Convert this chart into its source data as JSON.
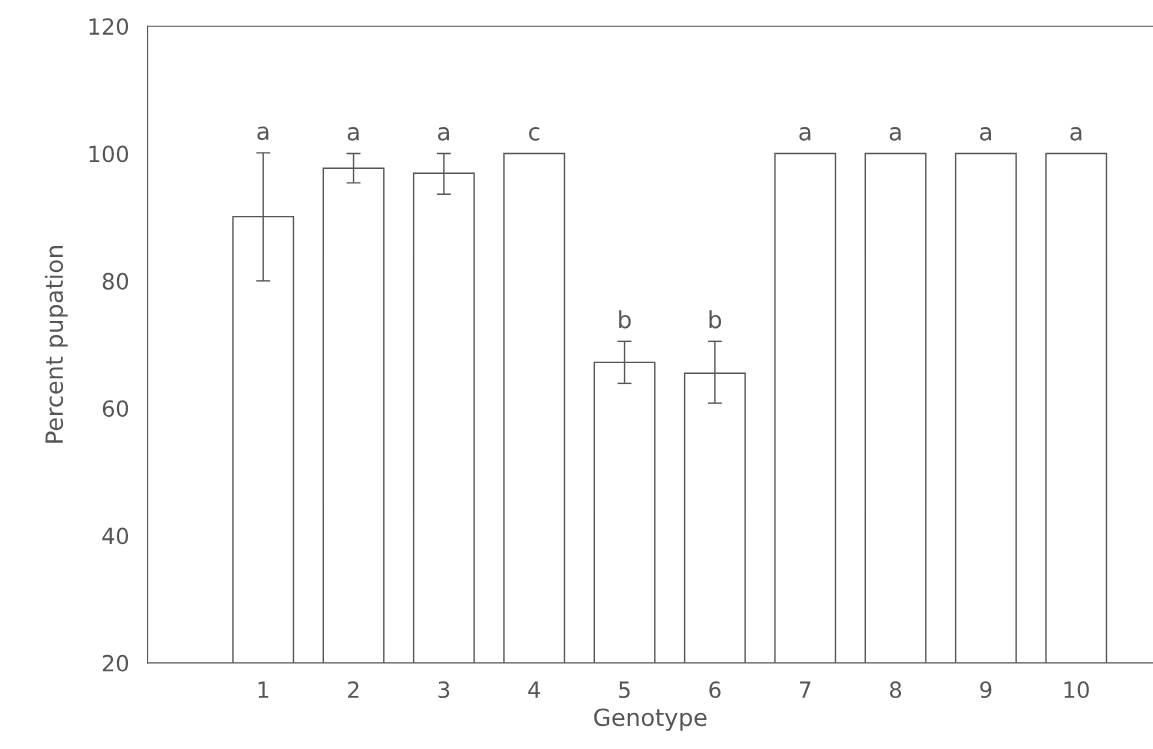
{
  "chart_data": {
    "type": "bar",
    "xlabel": "Genotype",
    "ylabel": "Percent pupation",
    "categories": [
      "1",
      "2",
      "3",
      "4",
      "5",
      "6",
      "7",
      "8",
      "9",
      "10"
    ],
    "values": [
      90.1,
      97.7,
      96.9,
      100,
      67.2,
      65.5,
      100,
      100,
      100,
      100
    ],
    "errors": [
      [
        80,
        100.1
      ],
      [
        95.4,
        100
      ],
      [
        93.6,
        100
      ],
      null,
      [
        63.9,
        70.5
      ],
      [
        60.8,
        70.5
      ],
      null,
      null,
      null,
      null
    ],
    "color": "#ffffff",
    "ylim": [
      20,
      120
    ],
    "yticks": [
      20,
      40,
      60,
      80,
      100,
      120
    ],
    "grid": false,
    "annotations": [
      "a",
      "a",
      "a",
      "c",
      "b",
      "b",
      "a",
      "a",
      "a",
      "a"
    ]
  }
}
